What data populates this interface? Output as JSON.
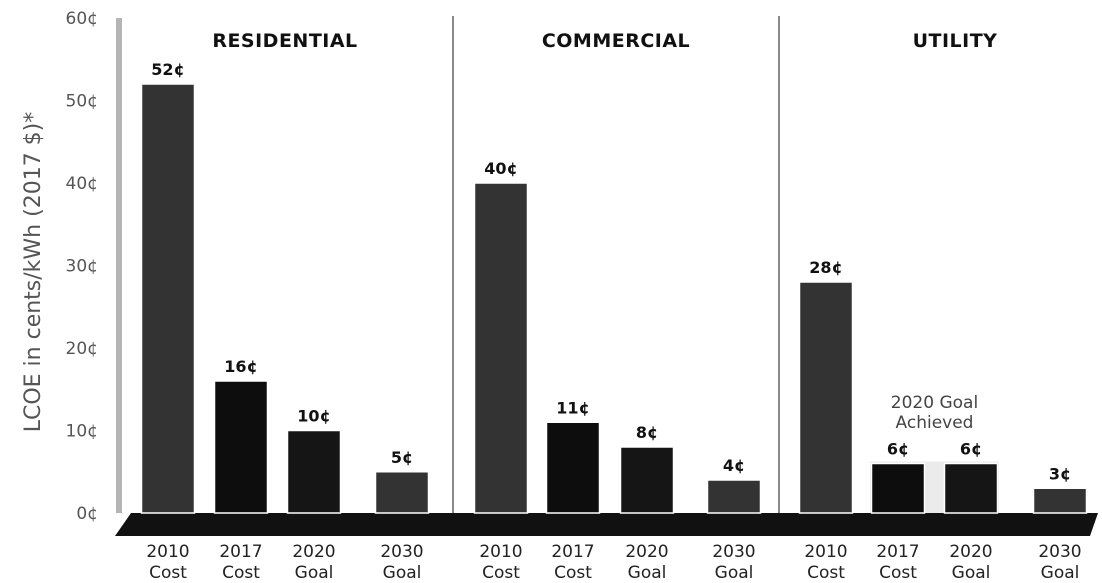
{
  "chart_data": {
    "type": "bar",
    "ylabel": "LCOE in cents/kWh (2017 $)*",
    "ylim": [
      0,
      60
    ],
    "yticks": [
      "0¢",
      "10¢",
      "20¢",
      "30¢",
      "40¢",
      "50¢",
      "60¢"
    ],
    "categories": [
      "2010 Cost",
      "2017 Cost",
      "2020 Goal",
      "2030 Goal"
    ],
    "panels": [
      {
        "title": "RESIDENTIAL",
        "bars": [
          {
            "category": "2010 Cost",
            "value": 52,
            "label": "52¢"
          },
          {
            "category": "2017 Cost",
            "value": 16,
            "label": "16¢"
          },
          {
            "category": "2020 Goal",
            "value": 10,
            "label": "10¢"
          },
          {
            "category": "2030 Goal",
            "value": 5,
            "label": "5¢"
          }
        ]
      },
      {
        "title": "COMMERCIAL",
        "bars": [
          {
            "category": "2010 Cost",
            "value": 40,
            "label": "40¢"
          },
          {
            "category": "2017 Cost",
            "value": 11,
            "label": "11¢"
          },
          {
            "category": "2020 Goal",
            "value": 8,
            "label": "8¢"
          },
          {
            "category": "2030 Goal",
            "value": 4,
            "label": "4¢"
          }
        ]
      },
      {
        "title": "UTILITY",
        "bars": [
          {
            "category": "2010 Cost",
            "value": 28,
            "label": "28¢"
          },
          {
            "category": "2017 Cost",
            "value": 6,
            "label": "6¢"
          },
          {
            "category": "2020 Goal",
            "value": 6,
            "label": "6¢"
          },
          {
            "category": "2030 Goal",
            "value": 3,
            "label": "3¢"
          }
        ],
        "annotation": "2020 Goal Achieved"
      }
    ],
    "colors": {
      "cost_2010": "#333333",
      "cost_2017": "#0d0d0d",
      "goal_2020": "#151515",
      "goal_2030": "#333333",
      "base": "#111111"
    }
  }
}
